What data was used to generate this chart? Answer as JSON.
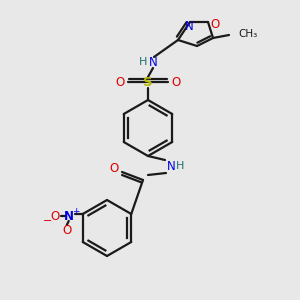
{
  "background_color": "#e8e8e8",
  "bond_color": "#1a1a1a",
  "atom_colors": {
    "N": "#0000e0",
    "O": "#e00000",
    "S": "#b8b800",
    "H": "#207070",
    "C": "#1a1a1a"
  },
  "figsize": [
    3.0,
    3.0
  ],
  "dpi": 100
}
